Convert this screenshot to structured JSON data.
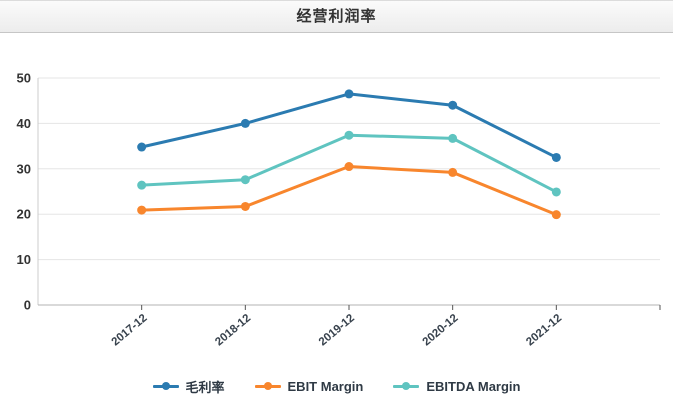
{
  "header": {
    "title": "经营利润率"
  },
  "chart_data": {
    "type": "line",
    "title": "经营利润率",
    "categories": [
      "2017-12",
      "2018-12",
      "2019-12",
      "2020-12",
      "2021-12"
    ],
    "series": [
      {
        "name": "毛利率",
        "color": "#2b7bb1",
        "values": [
          34.8,
          40.0,
          46.5,
          44.0,
          32.5
        ]
      },
      {
        "name": "EBIT Margin",
        "color": "#f8862d",
        "values": [
          20.9,
          21.7,
          30.5,
          29.2,
          19.9
        ]
      },
      {
        "name": "EBITDA Margin",
        "color": "#5fc4c0",
        "values": [
          26.4,
          27.6,
          37.4,
          36.7,
          24.9
        ]
      }
    ],
    "ylim": [
      0,
      50
    ],
    "yticks": [
      0,
      10,
      20,
      30,
      40,
      50
    ],
    "grid": true,
    "legend_position": "bottom",
    "x_label_rotation_deg": 40,
    "xlabel": "",
    "ylabel": ""
  },
  "colors": {
    "grid_line": "#e5e5e5",
    "y_axis_line": "#cccccc",
    "x_axis_line": "#b3b3b3",
    "axis_tick": "#555555",
    "y_label_text": "#333333",
    "x_label_text": "#38424d",
    "legend_text": "#2f3a45",
    "title_text": "#333333",
    "background": "#ffffff"
  }
}
